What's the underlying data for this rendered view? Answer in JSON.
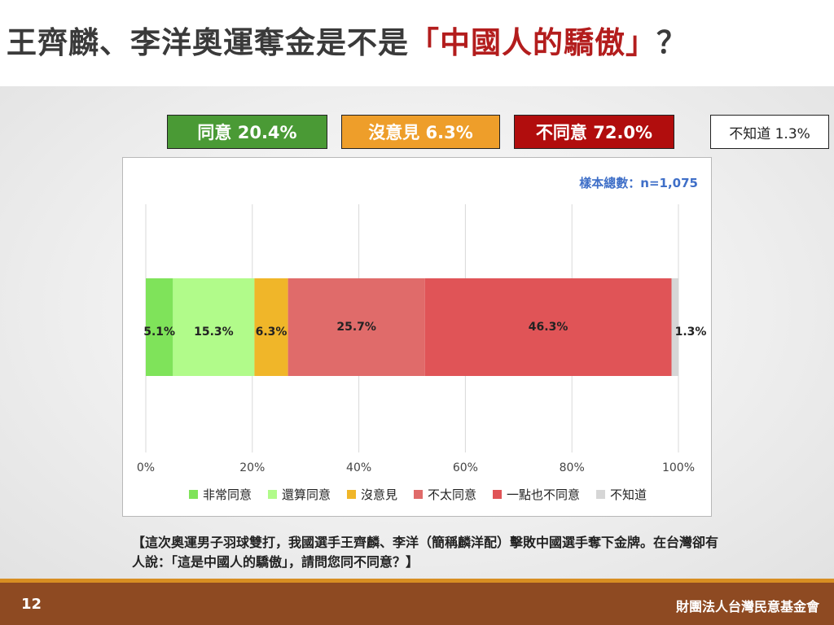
{
  "title": {
    "main": "王齊麟、李洋奧運奪金是不是",
    "highlight": "「中國人的驕傲」",
    "suffix": "？"
  },
  "summary": {
    "agree": "同意 20.4%",
    "neutral": "沒意見 6.3%",
    "disagree": "不同意 72.0%",
    "unknown": "不知道 1.3%"
  },
  "sample_size": "樣本總數：n=1,075",
  "question": "【這次奧運男子羽球雙打，我國選手王齊麟、李洋（簡稱麟洋配）擊敗中國選手奪下金牌。在台灣卻有人說：「這是中國人的驕傲」，請問您同不同意？】",
  "footer": {
    "page": "12",
    "org": "財團法人台灣民意基金會"
  },
  "chart_data": {
    "type": "bar",
    "orientation": "horizontal-stacked",
    "categories": [
      ""
    ],
    "series": [
      {
        "name": "非常同意",
        "values": [
          5.1
        ],
        "label": "5.1%",
        "color": "#7fe35a"
      },
      {
        "name": "還算同意",
        "values": [
          15.3
        ],
        "label": "15.3%",
        "color": "#b1fb8a"
      },
      {
        "name": "沒意見",
        "values": [
          6.3
        ],
        "label": "6.3%",
        "color": "#f0b629"
      },
      {
        "name": "不太同意",
        "values": [
          25.7
        ],
        "label": "25.7%",
        "color": "#e06b6a"
      },
      {
        "name": "一點也不同意",
        "values": [
          46.3
        ],
        "label": "46.3%",
        "color": "#e05457"
      },
      {
        "name": "不知道",
        "values": [
          1.3
        ],
        "label": "1.3%",
        "color": "#d6d6d6"
      }
    ],
    "xlim": [
      0,
      100
    ],
    "x_ticks": [
      "0%",
      "20%",
      "40%",
      "60%",
      "80%",
      "100%"
    ],
    "grid": true,
    "legend_position": "bottom"
  }
}
